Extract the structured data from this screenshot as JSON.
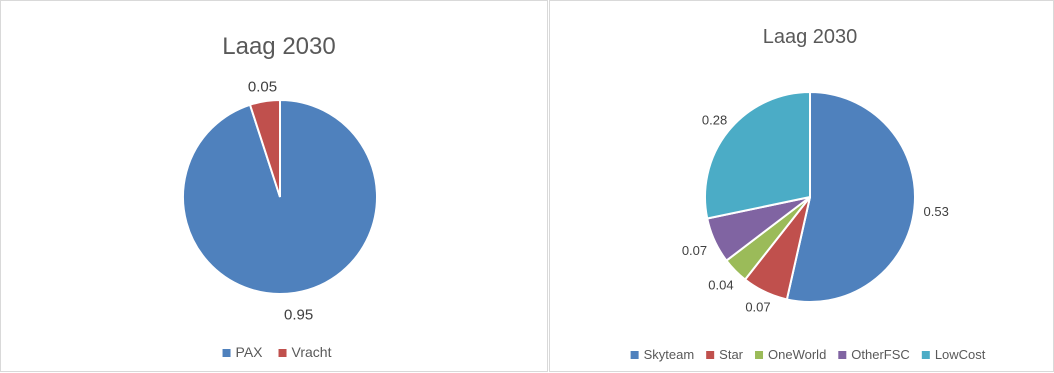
{
  "chart_data": [
    {
      "type": "pie",
      "title": "Laag 2030",
      "categories": [
        "PAX",
        "Vracht"
      ],
      "values": [
        0.95,
        0.05
      ],
      "data_labels": [
        "0.95",
        "0.05"
      ],
      "colors": [
        "#4F81BD",
        "#C0504D"
      ],
      "legend": "bottom"
    },
    {
      "type": "pie",
      "title": "Laag 2030",
      "categories": [
        "Skyteam",
        "Star",
        "OneWorld",
        "OtherFSC",
        "LowCost"
      ],
      "values": [
        0.53,
        0.07,
        0.04,
        0.07,
        0.28
      ],
      "data_labels": [
        "0.53",
        "0.07",
        "0.04",
        "0.07",
        "0.28"
      ],
      "colors": [
        "#4F81BD",
        "#C0504D",
        "#9BBB59",
        "#8064A2",
        "#4BACC6"
      ],
      "legend": "bottom"
    }
  ]
}
